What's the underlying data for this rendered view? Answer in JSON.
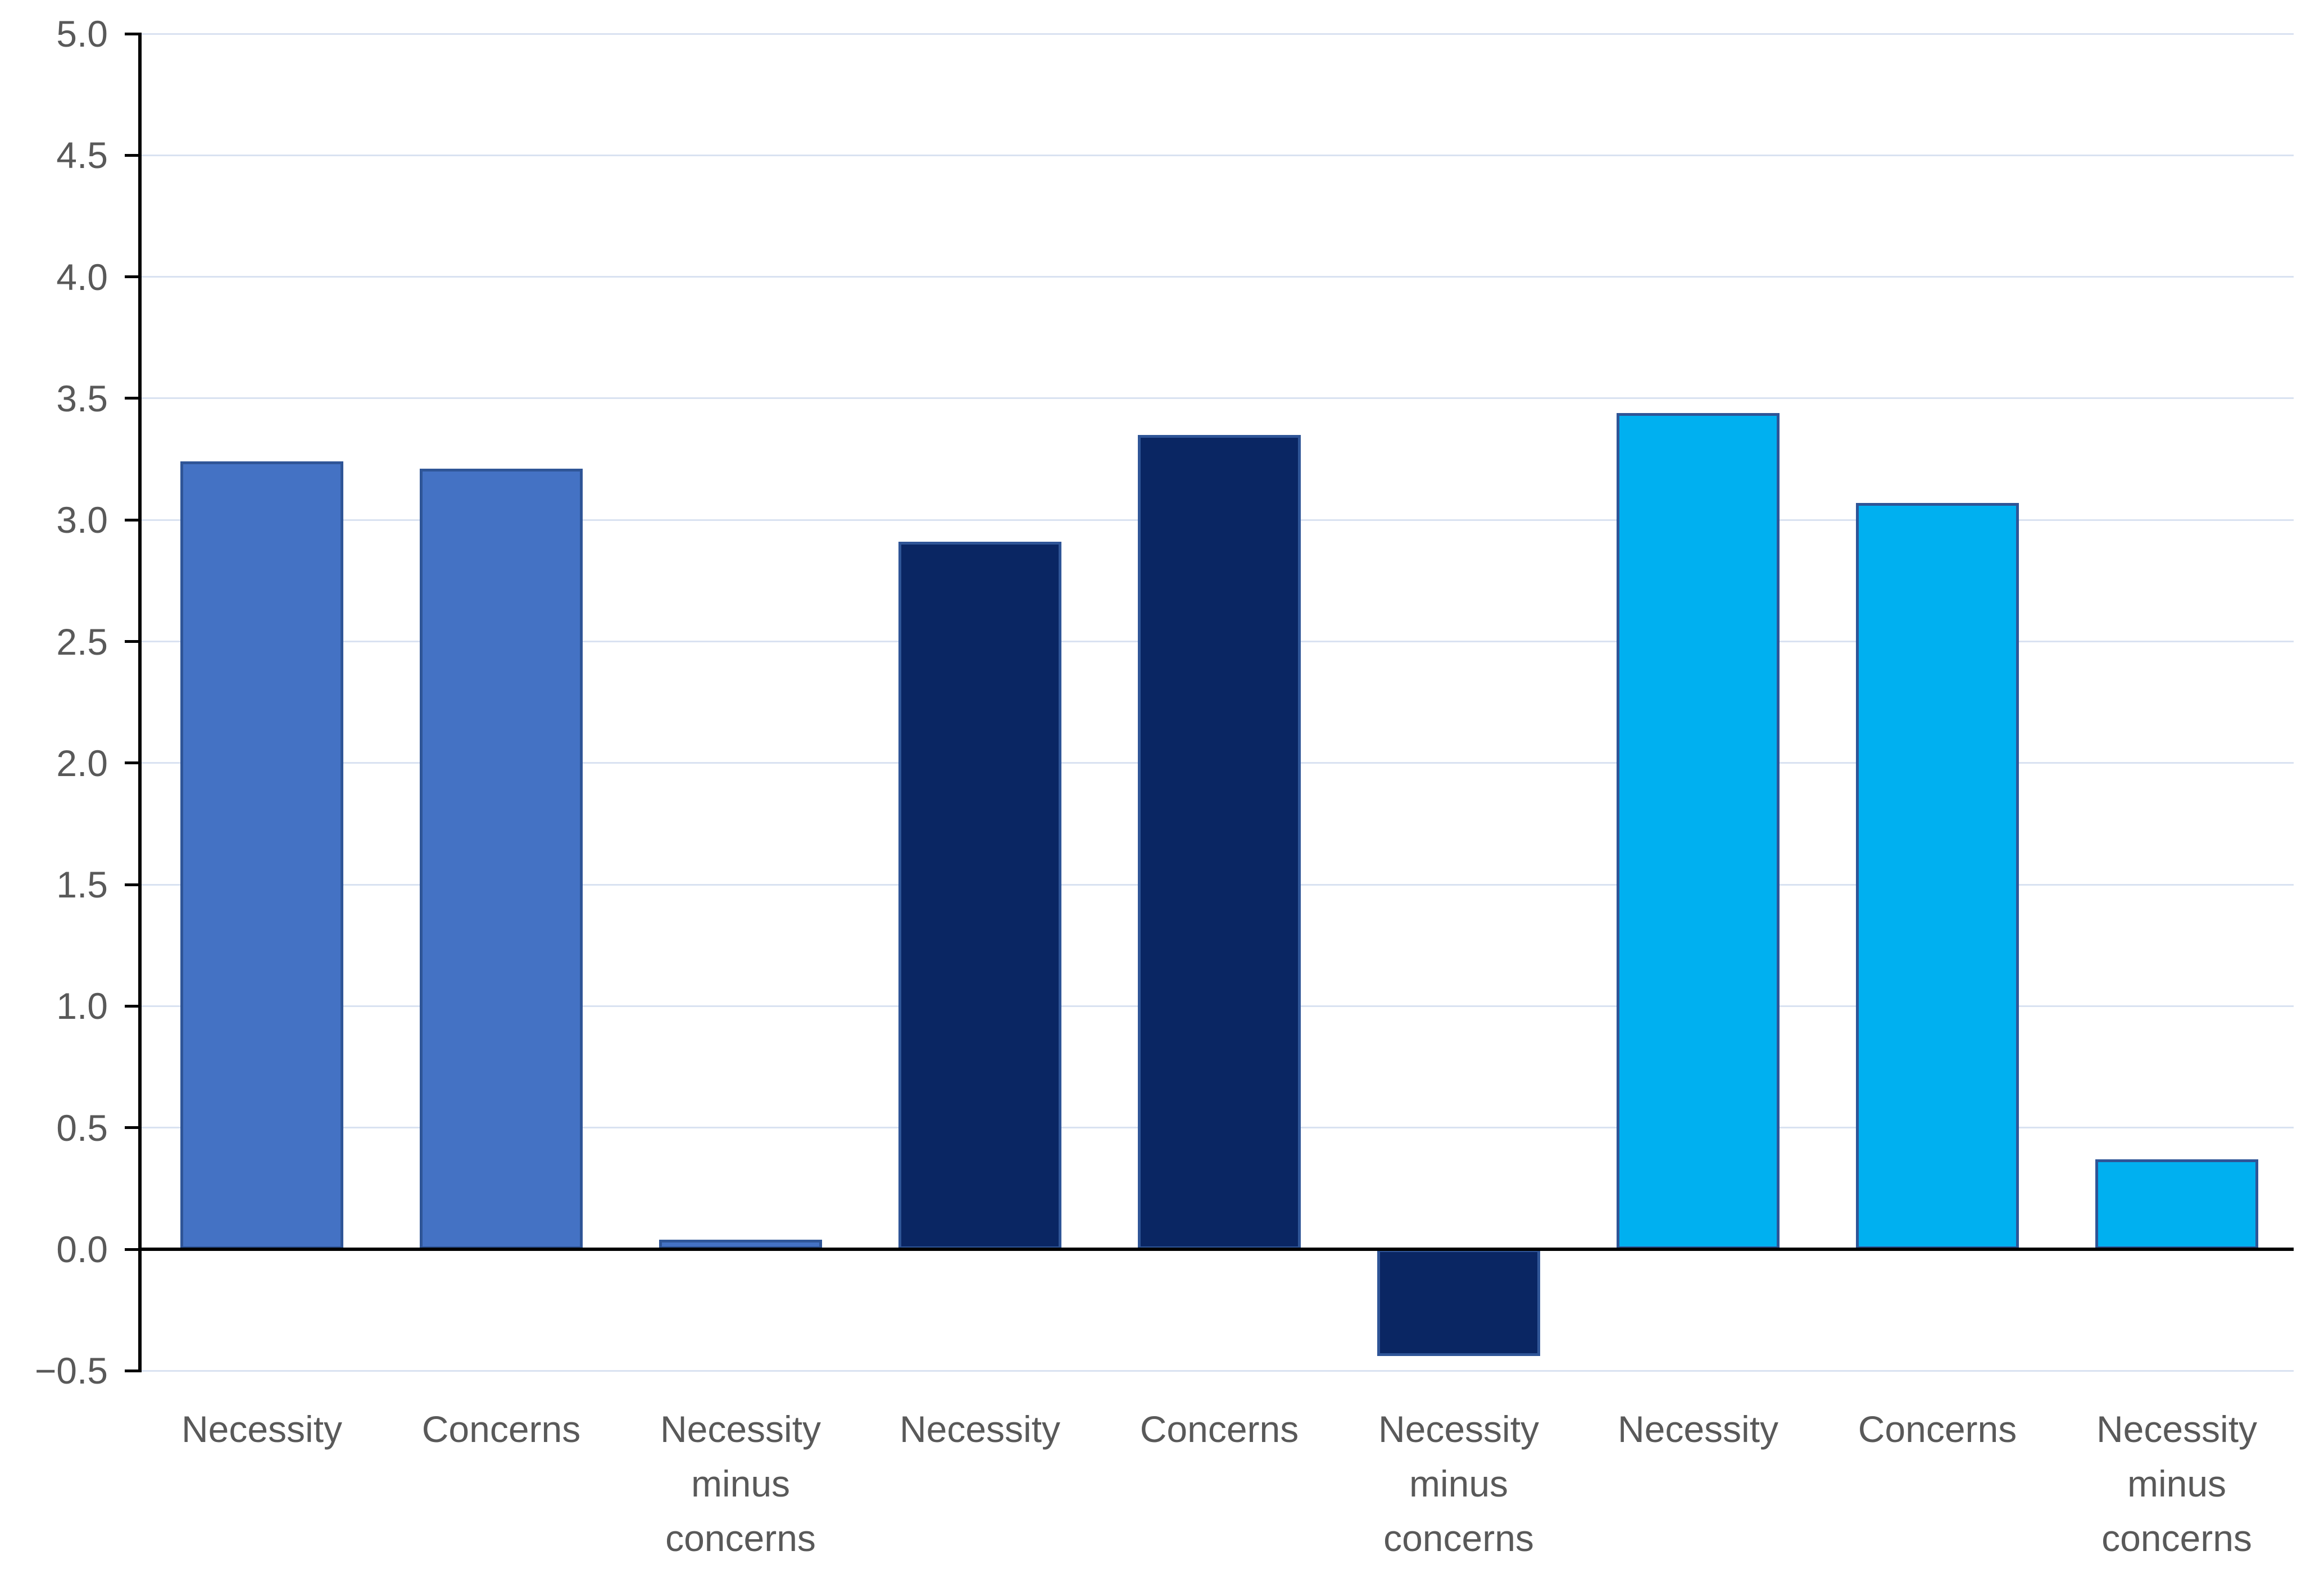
{
  "chart": {
    "background_color": "#FFFFFF",
    "axis_color": "#000000",
    "gridline_color": "#D9E2F1",
    "tick_label_color": "#595959",
    "x_label_color": "#595959",
    "bar_border_color": "#2F5597"
  },
  "chart_data": {
    "type": "bar",
    "title": "",
    "xlabel": "",
    "ylabel": "",
    "categories": [
      "Necessity",
      "Concerns",
      "Necessity minus concerns",
      "Necessity",
      "Concerns",
      "Necessity minus concerns",
      "Necessity",
      "Concerns",
      "Necessity minus concerns"
    ],
    "category_lines": [
      [
        "Necessity"
      ],
      [
        "Concerns"
      ],
      [
        "Necessity",
        "minus",
        "concerns"
      ],
      [
        "Necessity"
      ],
      [
        "Concerns"
      ],
      [
        "Necessity",
        "minus",
        "concerns"
      ],
      [
        "Necessity"
      ],
      [
        "Concerns"
      ],
      [
        "Necessity",
        "minus",
        "concerns"
      ]
    ],
    "values": [
      3.24,
      3.21,
      0.04,
      2.91,
      3.35,
      -0.44,
      3.44,
      3.07,
      0.37
    ],
    "bar_colors": [
      "#4472C4",
      "#4472C4",
      "#4472C4",
      "#0A2663",
      "#0A2663",
      "#0A2663",
      "#00B0F0",
      "#00B0F0",
      "#00B0F0"
    ],
    "groups": [
      {
        "name": "group-1-medium-blue",
        "color": "#4472C4",
        "necessity": 3.24,
        "concerns": 3.21,
        "necessity_minus_concerns": 0.04
      },
      {
        "name": "group-2-dark-navy",
        "color": "#0A2663",
        "necessity": 2.91,
        "concerns": 3.35,
        "necessity_minus_concerns": -0.44
      },
      {
        "name": "group-3-light-blue",
        "color": "#00B0F0",
        "necessity": 3.44,
        "concerns": 3.07,
        "necessity_minus_concerns": 0.37
      }
    ],
    "ylim": [
      -0.5,
      5.0
    ],
    "ytick_step": 0.5,
    "ytick_labels": [
      "5.0",
      "4.5",
      "4.0",
      "3.5",
      "3.0",
      "2.5",
      "2.0",
      "1.5",
      "1.0",
      "0.5",
      "0.0",
      "−0.5"
    ],
    "grid": true,
    "legend": "none"
  }
}
